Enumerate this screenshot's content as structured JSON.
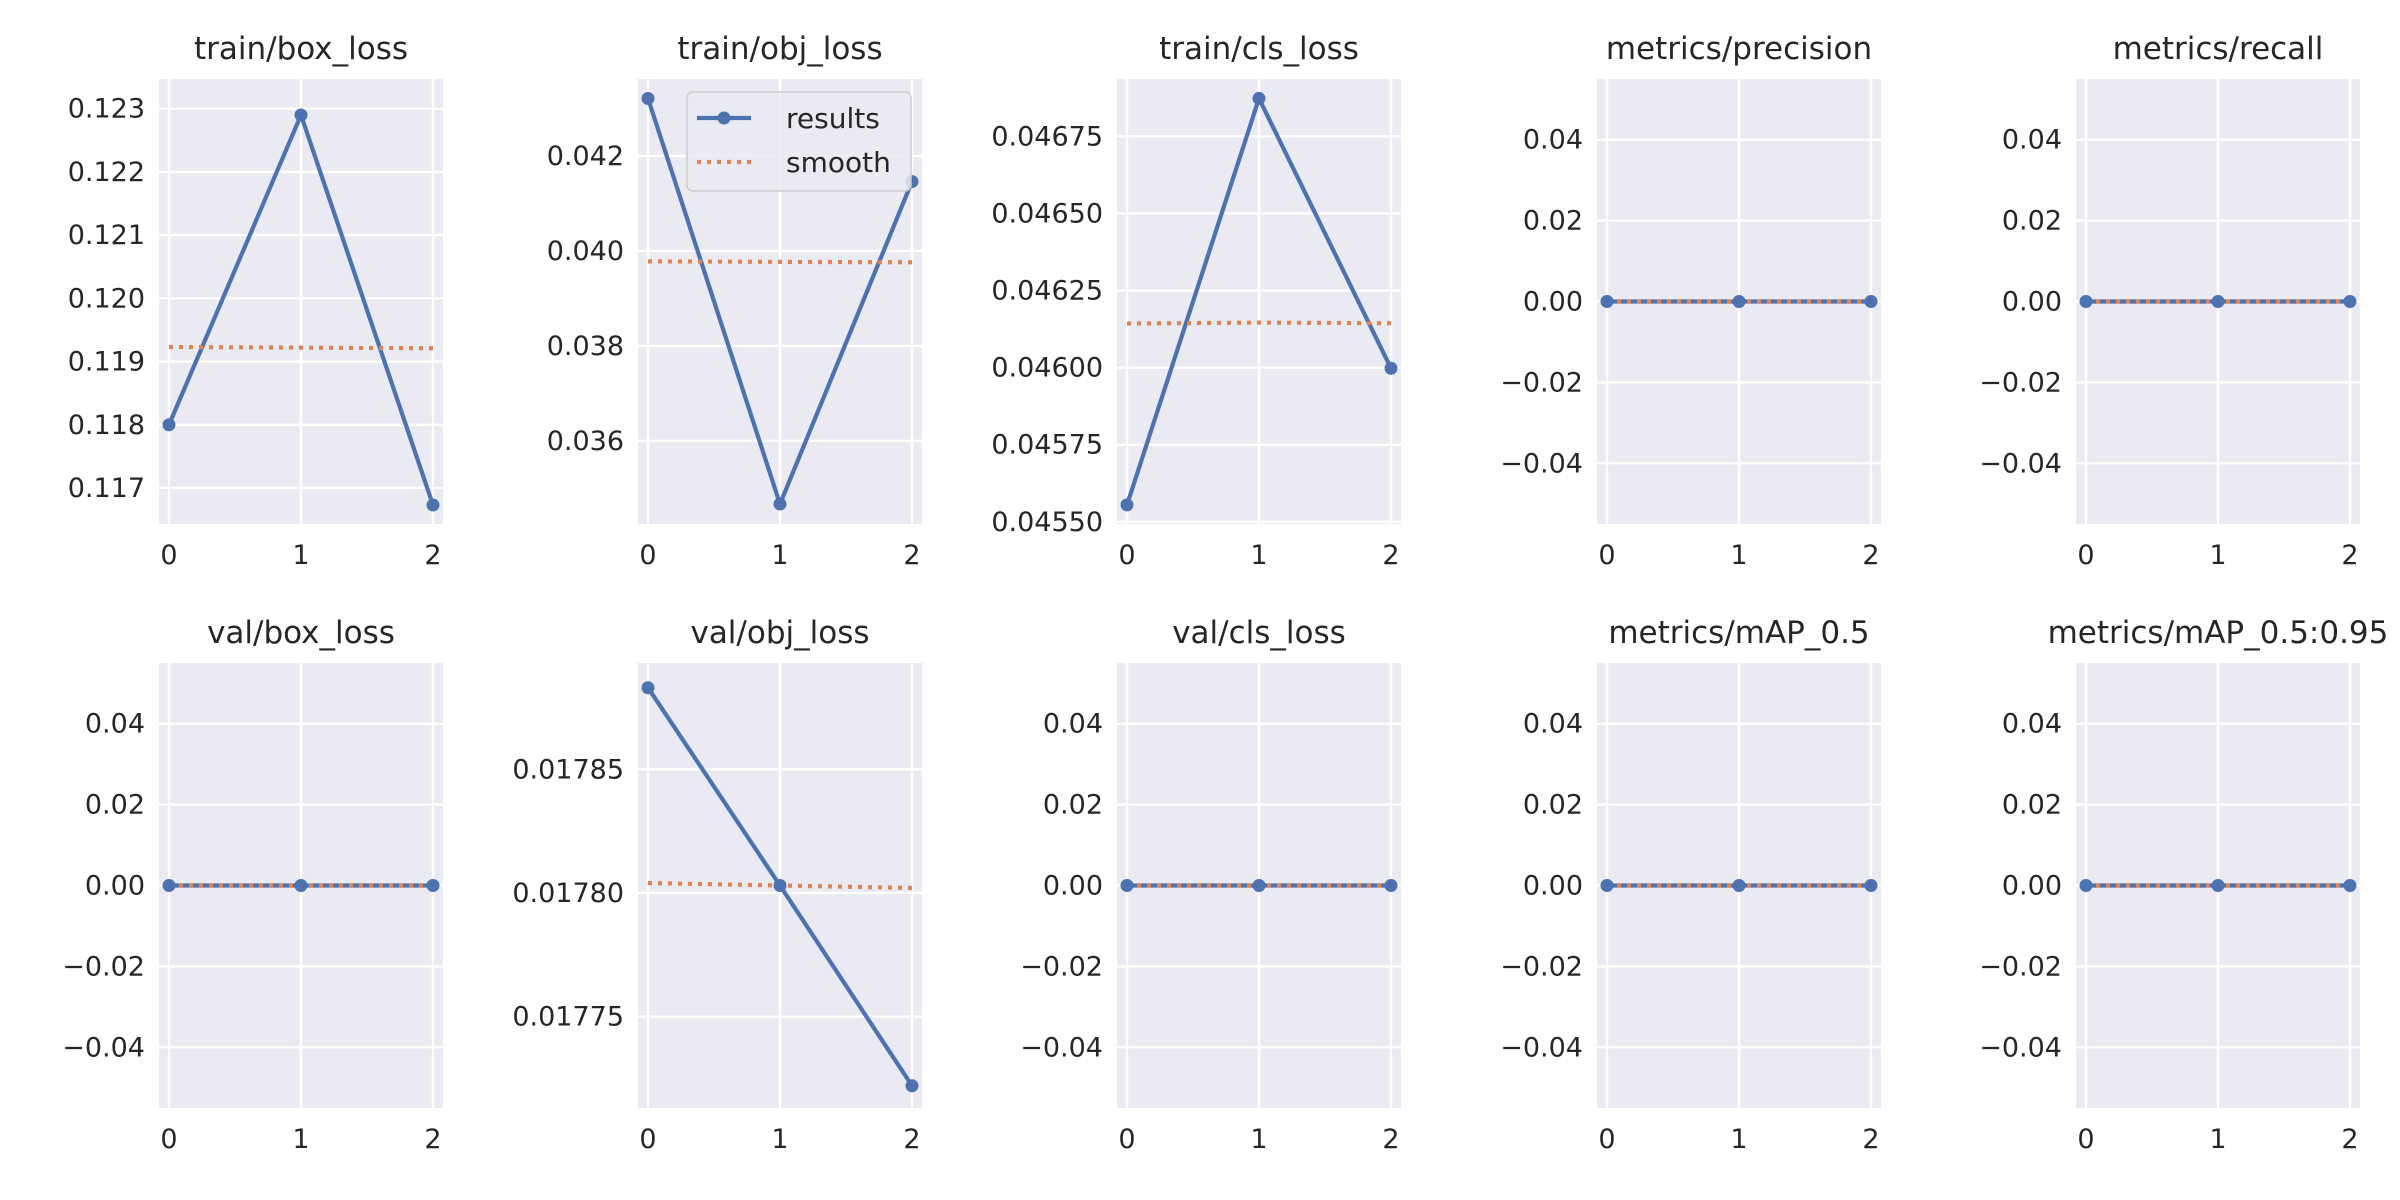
{
  "colors": {
    "results": "#4c72b0",
    "smooth": "#dd8452",
    "panel_background": "#eaeaf2",
    "grid": "#ffffff",
    "text": "#262626"
  },
  "legend": {
    "entries": [
      "results",
      "smooth"
    ],
    "placement": "upper-right of train/obj_loss"
  },
  "chart_data": [
    {
      "type": "line",
      "title": "train/box_loss",
      "x": [
        0,
        1,
        2
      ],
      "xticks": [
        "0",
        "1",
        "2"
      ],
      "yticks": [
        "0.117",
        "0.118",
        "0.119",
        "0.120",
        "0.121",
        "0.122",
        "0.123"
      ],
      "ylim": [
        0.11643,
        0.12347
      ],
      "grid": true,
      "series": [
        {
          "name": "results",
          "values": [
            0.118,
            0.1229,
            0.11673
          ]
        },
        {
          "name": "smooth",
          "values": [
            0.11923,
            0.11922,
            0.11921
          ]
        }
      ]
    },
    {
      "type": "line",
      "title": "train/obj_loss",
      "x": [
        0,
        1,
        2
      ],
      "xticks": [
        "0",
        "1",
        "2"
      ],
      "yticks": [
        "0.036",
        "0.038",
        "0.040",
        "0.042"
      ],
      "ylim": [
        0.03425,
        0.04362
      ],
      "grid": true,
      "series": [
        {
          "name": "results",
          "values": [
            0.04321,
            0.03467,
            0.04146
          ]
        },
        {
          "name": "smooth",
          "values": [
            0.03978,
            0.03977,
            0.03976
          ]
        }
      ]
    },
    {
      "type": "line",
      "title": "train/cls_loss",
      "x": [
        0,
        1,
        2
      ],
      "xticks": [
        "0",
        "1",
        "2"
      ],
      "yticks": [
        "0.04550",
        "0.04575",
        "0.04600",
        "0.04625",
        "0.04650",
        "0.04675"
      ],
      "ylim": [
        0.045493,
        0.046936
      ],
      "grid": true,
      "series": [
        {
          "name": "results",
          "values": [
            0.045555,
            0.046873,
            0.045998
          ]
        },
        {
          "name": "smooth",
          "values": [
            0.046143,
            0.046146,
            0.046144
          ]
        }
      ]
    },
    {
      "type": "line",
      "title": "metrics/precision",
      "x": [
        0,
        1,
        2
      ],
      "xticks": [
        "0",
        "1",
        "2"
      ],
      "yticks": [
        "−0.04",
        "−0.02",
        "0.00",
        "0.02",
        "0.04"
      ],
      "ylim": [
        -0.055,
        0.055
      ],
      "grid": true,
      "series": [
        {
          "name": "results",
          "values": [
            0,
            0,
            0
          ]
        },
        {
          "name": "smooth",
          "values": [
            0,
            0,
            0
          ]
        }
      ]
    },
    {
      "type": "line",
      "title": "metrics/recall",
      "x": [
        0,
        1,
        2
      ],
      "xticks": [
        "0",
        "1",
        "2"
      ],
      "yticks": [
        "−0.04",
        "−0.02",
        "0.00",
        "0.02",
        "0.04"
      ],
      "ylim": [
        -0.055,
        0.055
      ],
      "grid": true,
      "series": [
        {
          "name": "results",
          "values": [
            0,
            0,
            0
          ]
        },
        {
          "name": "smooth",
          "values": [
            0,
            0,
            0
          ]
        }
      ]
    },
    {
      "type": "line",
      "title": "val/box_loss",
      "x": [
        0,
        1,
        2
      ],
      "xticks": [
        "0",
        "1",
        "2"
      ],
      "yticks": [
        "−0.04",
        "−0.02",
        "0.00",
        "0.02",
        "0.04"
      ],
      "ylim": [
        -0.055,
        0.055
      ],
      "grid": true,
      "series": [
        {
          "name": "results",
          "values": [
            0,
            0,
            0
          ]
        },
        {
          "name": "smooth",
          "values": [
            0,
            0,
            0
          ]
        }
      ]
    },
    {
      "type": "line",
      "title": "val/obj_loss",
      "x": [
        0,
        1,
        2
      ],
      "xticks": [
        "0",
        "1",
        "2"
      ],
      "yticks": [
        "0.01775",
        "0.01780",
        "0.01785"
      ],
      "ylim": [
        0.017713,
        0.017893
      ],
      "grid": true,
      "series": [
        {
          "name": "results",
          "values": [
            0.017883,
            0.017803,
            0.017722
          ]
        },
        {
          "name": "smooth",
          "values": [
            0.017804,
            0.017803,
            0.017802
          ]
        }
      ]
    },
    {
      "type": "line",
      "title": "val/cls_loss",
      "x": [
        0,
        1,
        2
      ],
      "xticks": [
        "0",
        "1",
        "2"
      ],
      "yticks": [
        "−0.04",
        "−0.02",
        "0.00",
        "0.02",
        "0.04"
      ],
      "ylim": [
        -0.055,
        0.055
      ],
      "grid": true,
      "series": [
        {
          "name": "results",
          "values": [
            0,
            0,
            0
          ]
        },
        {
          "name": "smooth",
          "values": [
            0,
            0,
            0
          ]
        }
      ]
    },
    {
      "type": "line",
      "title": "metrics/mAP_0.5",
      "x": [
        0,
        1,
        2
      ],
      "xticks": [
        "0",
        "1",
        "2"
      ],
      "yticks": [
        "−0.04",
        "−0.02",
        "0.00",
        "0.02",
        "0.04"
      ],
      "ylim": [
        -0.055,
        0.055
      ],
      "grid": true,
      "series": [
        {
          "name": "results",
          "values": [
            0,
            0,
            0
          ]
        },
        {
          "name": "smooth",
          "values": [
            0,
            0,
            0
          ]
        }
      ]
    },
    {
      "type": "line",
      "title": "metrics/mAP_0.5:0.95",
      "x": [
        0,
        1,
        2
      ],
      "xticks": [
        "0",
        "1",
        "2"
      ],
      "yticks": [
        "−0.04",
        "−0.02",
        "0.00",
        "0.02",
        "0.04"
      ],
      "ylim": [
        -0.055,
        0.055
      ],
      "grid": true,
      "series": [
        {
          "name": "results",
          "values": [
            0,
            0,
            0
          ]
        },
        {
          "name": "smooth",
          "values": [
            0,
            0,
            0
          ]
        }
      ]
    }
  ]
}
